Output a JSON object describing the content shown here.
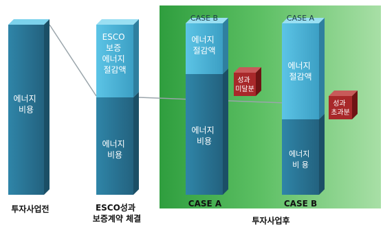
{
  "columns": {
    "before": {
      "bar_text": [
        "에너지",
        "비용"
      ],
      "caption": [
        "투자사업전"
      ]
    },
    "esco": {
      "upper_text": [
        "ESCO",
        "보증",
        "에너지",
        "절감액"
      ],
      "lower_text": [
        "에너지",
        "비용"
      ],
      "caption": [
        "ESCO성과",
        "보증계약 체결"
      ]
    },
    "after": {
      "caption": [
        "투자사업후"
      ],
      "case_b_bar": {
        "top_label": "CASE B",
        "upper_text": [
          "에너지",
          "절감액"
        ],
        "lower_text": [
          "에너지",
          "비용"
        ],
        "bottom_label": "CASE A"
      },
      "case_a_bar": {
        "top_label": "CASE A",
        "upper_text": [
          "에너지",
          "절감액"
        ],
        "lower_text": [
          "에너지",
          "비  용"
        ],
        "bottom_label": "CASE B"
      },
      "shortfall_box": [
        "성과",
        "미달분"
      ],
      "excess_box": [
        "성과",
        "초과분"
      ]
    }
  },
  "colors": {
    "bar_dark": "#2a7a99",
    "bar_light": "#4ab6d8",
    "panel_green": "#3aa84a",
    "box_red": "#a8282a"
  }
}
